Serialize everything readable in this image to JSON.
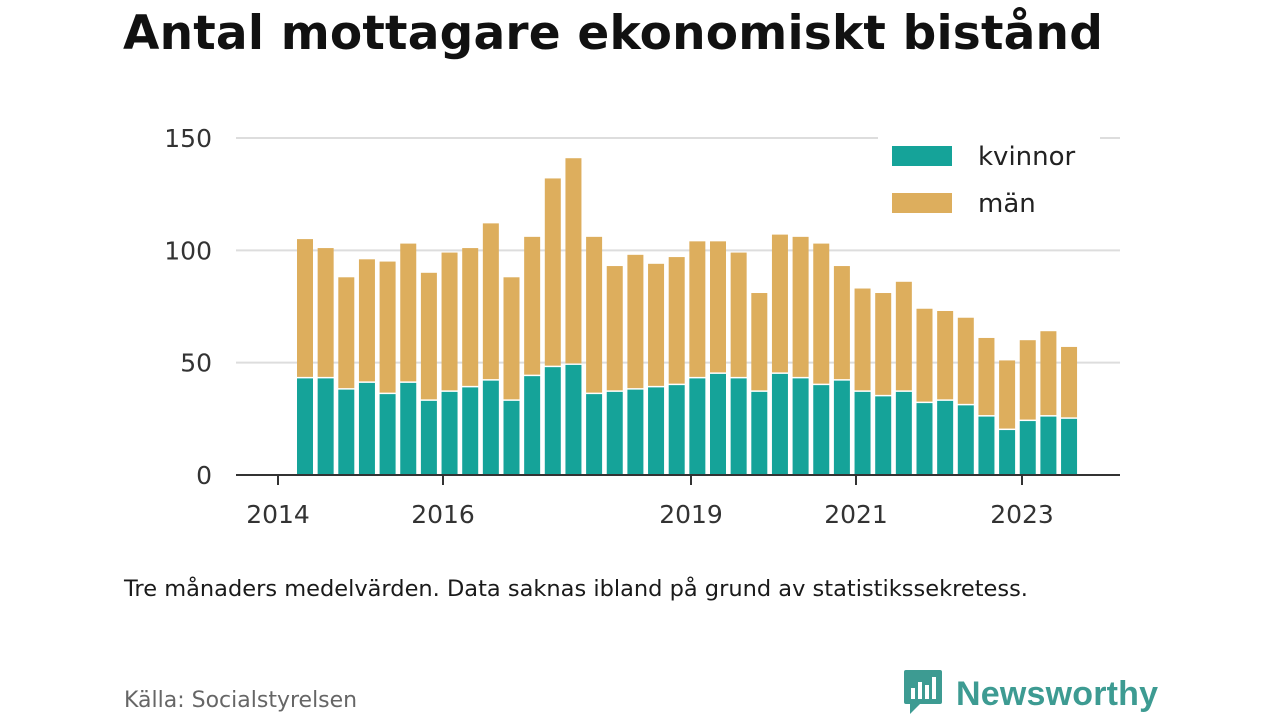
{
  "title": "Antal mottagare ekonomiskt bistånd",
  "note": "Tre månaders medelvärden. Data saknas ibland på grund av statistikssekretess.",
  "source": "Källa: Socialstyrelsen",
  "brand": {
    "name": "Newsworthy",
    "icon": "newsworthy-logo-icon"
  },
  "colors": {
    "kvinnor": "#15a399",
    "man": "#ddae5d",
    "grid": "#dddddd",
    "axis": "#333333"
  },
  "chart_data": {
    "type": "bar",
    "stacked": true,
    "x_ticks": [
      "2014",
      "2016",
      "2019",
      "2021",
      "2023"
    ],
    "y_ticks": [
      0,
      50,
      100,
      150
    ],
    "ylim": [
      0,
      150
    ],
    "grid": true,
    "legend_position": "top-right",
    "series": [
      {
        "name": "kvinnor",
        "values": [
          43,
          43,
          38,
          41,
          36,
          41,
          33,
          37,
          39,
          42,
          33,
          44,
          48,
          49,
          36,
          37,
          38,
          39,
          40,
          43,
          45,
          43,
          37,
          45,
          43,
          40,
          42,
          37,
          35,
          37,
          32,
          33,
          31,
          26,
          20,
          24,
          26,
          25
        ]
      },
      {
        "name": "män",
        "values": [
          62,
          58,
          50,
          55,
          59,
          62,
          57,
          62,
          62,
          70,
          55,
          62,
          84,
          92,
          70,
          56,
          60,
          55,
          57,
          61,
          59,
          56,
          44,
          62,
          63,
          63,
          51,
          46,
          46,
          49,
          42,
          40,
          39,
          35,
          31,
          36,
          38,
          32
        ]
      }
    ]
  }
}
